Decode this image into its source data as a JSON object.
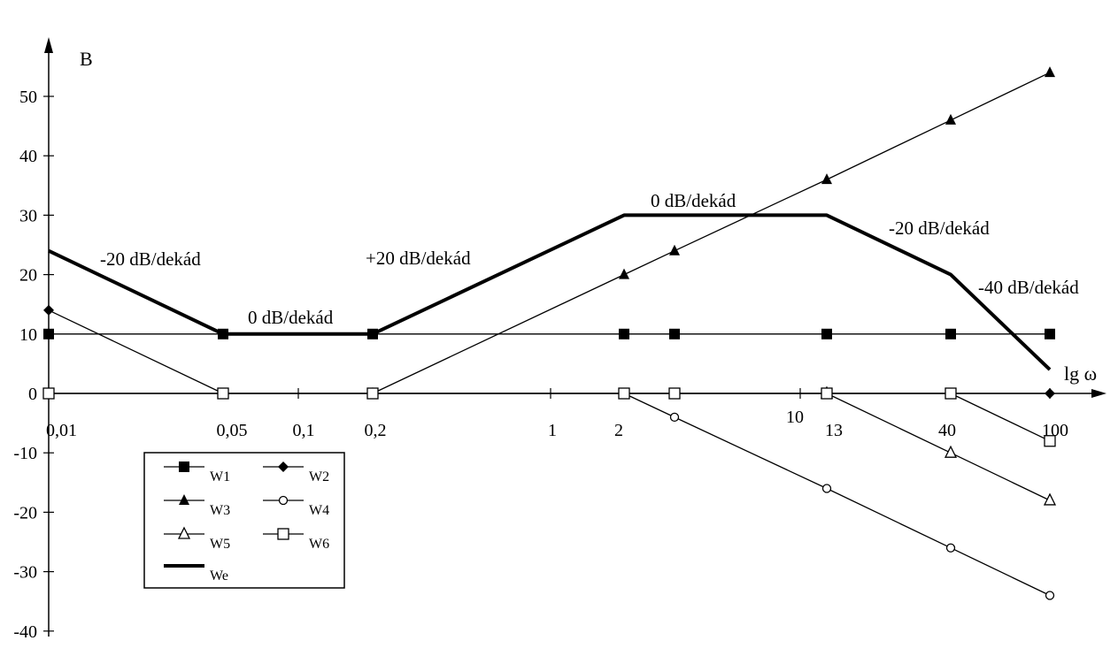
{
  "chart_data": {
    "type": "line",
    "title": "",
    "ylabel": "B",
    "xlabel": "lg ω",
    "x_scale": "log",
    "xlim": [
      0.01,
      100
    ],
    "ylim": [
      -40,
      55
    ],
    "grid": false,
    "legend_placement": "bottom-left",
    "y_ticks": [
      "50",
      "40",
      "30",
      "20",
      "10",
      "0",
      "-10",
      "-20",
      "-30",
      "-40"
    ],
    "x_ticks": [
      {
        "value": 0.01,
        "label": "0,01"
      },
      {
        "value": 0.05,
        "label": "0,05"
      },
      {
        "value": 0.1,
        "label": "0,1"
      },
      {
        "value": 0.2,
        "label": "0,2"
      },
      {
        "value": 1,
        "label": "1"
      },
      {
        "value": 2,
        "label": "2"
      },
      {
        "value": 10,
        "label": "10"
      },
      {
        "value": 13,
        "label": "13"
      },
      {
        "value": 40,
        "label": "40"
      },
      {
        "value": 100,
        "label": "100"
      }
    ],
    "series": [
      {
        "name": "W1",
        "marker": "square-filled",
        "bold": false,
        "x": [
          0.01,
          0.05,
          0.2,
          2,
          3,
          13,
          40,
          100
        ],
        "y": [
          10,
          10,
          10,
          10,
          10,
          10,
          10,
          10
        ]
      },
      {
        "name": "W2",
        "marker": "diamond-filled",
        "bold": false,
        "x": [
          0.01,
          0.05,
          0.2,
          2,
          3,
          13,
          40,
          100
        ],
        "y": [
          14,
          0,
          0,
          0,
          0,
          0,
          0,
          0
        ]
      },
      {
        "name": "W3",
        "marker": "triangle-filled",
        "bold": false,
        "x": [
          0.2,
          2,
          3,
          13,
          40,
          100
        ],
        "y": [
          0,
          20,
          24,
          36,
          46,
          54
        ]
      },
      {
        "name": "W4",
        "marker": "circle-open",
        "bold": false,
        "x": [
          2,
          3,
          13,
          40,
          100
        ],
        "y": [
          0,
          -4,
          -16,
          -26,
          -34
        ]
      },
      {
        "name": "W5",
        "marker": "triangle-open",
        "bold": false,
        "x": [
          13,
          40,
          100
        ],
        "y": [
          0,
          -10,
          -18
        ]
      },
      {
        "name": "W6",
        "marker": "square-open",
        "bold": false,
        "x": [
          0.01,
          0.05,
          0.2,
          2,
          3,
          13,
          40,
          100
        ],
        "y": [
          0,
          0,
          0,
          0,
          0,
          0,
          0,
          -8
        ]
      },
      {
        "name": "We",
        "marker": "none",
        "bold": true,
        "x": [
          0.01,
          0.05,
          0.2,
          2,
          13,
          40,
          100
        ],
        "y": [
          24,
          10,
          10,
          30,
          30,
          20,
          4
        ]
      }
    ],
    "annotations": [
      {
        "text": "-20 dB/dekád"
      },
      {
        "text": "0 dB/dekád"
      },
      {
        "text": "+20 dB/dekád"
      },
      {
        "text": "0 dB/dekád"
      },
      {
        "text": "-20 dB/dekád"
      },
      {
        "text": "-40 dB/dekád"
      }
    ]
  }
}
